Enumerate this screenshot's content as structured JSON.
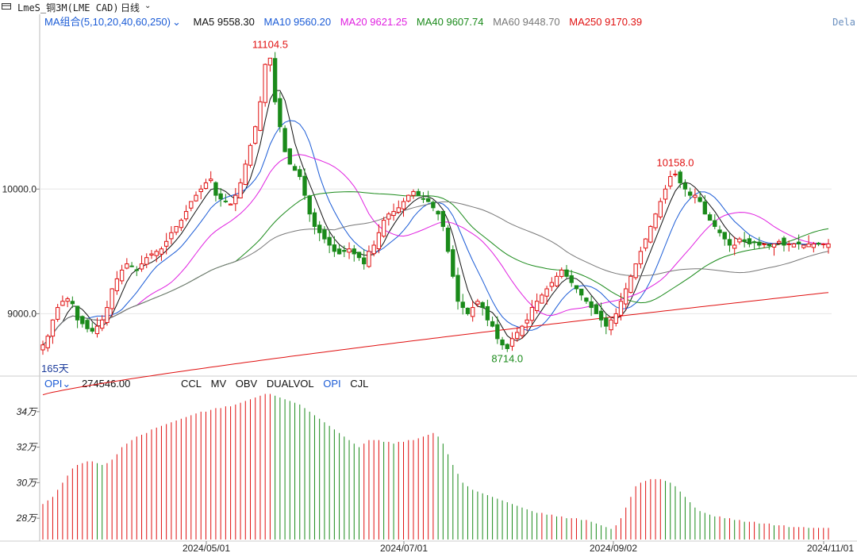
{
  "window": {
    "title": "LmeS_铜3M(LME CAD)",
    "period_label": "日线",
    "delay_label": "Dela"
  },
  "legend": {
    "selector_label": "MA组合(5,10,20,40,60,250)",
    "items": [
      {
        "label": "MA5 9558.30",
        "color": "#111111"
      },
      {
        "label": "MA10 9560.20",
        "color": "#1a5bd6"
      },
      {
        "label": "MA20 9621.25",
        "color": "#e020e0"
      },
      {
        "label": "MA40 9607.74",
        "color": "#1a8a1a"
      },
      {
        "label": "MA60 9448.70",
        "color": "#777777"
      },
      {
        "label": "MA250 9170.39",
        "color": "#e01010"
      }
    ]
  },
  "price_axis": {
    "ticks": [
      "10000.0",
      "9000.0"
    ]
  },
  "annotations": {
    "high1": "11104.5",
    "low1": "8714.0",
    "high2": "10158.0",
    "days": "165天"
  },
  "sub_panel": {
    "selector_label": "OPI",
    "value": "274546.00",
    "tabs": [
      {
        "label": "CCL",
        "active": false
      },
      {
        "label": "MV",
        "active": false
      },
      {
        "label": "OBV",
        "active": false
      },
      {
        "label": "DUALVOL",
        "active": false
      },
      {
        "label": "OPI",
        "active": true
      },
      {
        "label": "CJL",
        "active": false
      }
    ],
    "y_ticks": [
      "34万",
      "32万",
      "30万",
      "28万"
    ]
  },
  "x_axis": {
    "ticks": [
      "2024/05/01",
      "2024/07/01",
      "2024/09/02",
      "2024/11/01"
    ]
  },
  "colors": {
    "up": "#e01010",
    "down": "#1a8a1a",
    "grid": "#e6e6e6"
  },
  "chart_data": [
    {
      "type": "candlestick",
      "title": "LmeS_铜3M(LME CAD)",
      "period": "日线",
      "ylim": [
        8500,
        11300
      ],
      "series": [
        {
          "name": "MA5",
          "last": 9558.3
        },
        {
          "name": "MA10",
          "last": 9560.2
        },
        {
          "name": "MA20",
          "last": 9621.25
        },
        {
          "name": "MA40",
          "last": 9607.74
        },
        {
          "name": "MA60",
          "last": 9448.7
        },
        {
          "name": "MA250",
          "last": 9170.39
        }
      ],
      "closes": [
        8750,
        8820,
        8950,
        9050,
        9100,
        9120,
        9080,
        8950,
        8920,
        8880,
        8860,
        8900,
        8950,
        9050,
        9200,
        9280,
        9350,
        9400,
        9380,
        9350,
        9400,
        9450,
        9480,
        9500,
        9520,
        9580,
        9650,
        9700,
        9750,
        9820,
        9900,
        9950,
        10000,
        10050,
        10080,
        9950,
        9920,
        9900,
        9880,
        9950,
        10050,
        10200,
        10350,
        10500,
        10700,
        11000,
        11050,
        10700,
        10500,
        10300,
        10200,
        10150,
        10100,
        9950,
        9800,
        9700,
        9650,
        9600,
        9550,
        9500,
        9480,
        9500,
        9520,
        9480,
        9450,
        9400,
        9500,
        9550,
        9650,
        9750,
        9800,
        9820,
        9850,
        9900,
        9950,
        9980,
        9950,
        9920,
        9900,
        9850,
        9800,
        9700,
        9500,
        9300,
        9100,
        9050,
        9000,
        9050,
        9100,
        9050,
        8950,
        8900,
        8800,
        8750,
        8720,
        8800,
        8850,
        8900,
        8950,
        9050,
        9100,
        9150,
        9200,
        9250,
        9300,
        9350,
        9300,
        9250,
        9200,
        9150,
        9100,
        9050,
        9000,
        8950,
        8900,
        8950,
        9000,
        9100,
        9200,
        9300,
        9400,
        9500,
        9600,
        9700,
        9800,
        9900,
        10000,
        10100,
        10120,
        10050,
        10000,
        9950,
        9950,
        9900,
        9800,
        9750,
        9700,
        9650,
        9600,
        9550,
        9550,
        9600,
        9580,
        9560,
        9570,
        9550,
        9560,
        9550,
        9560,
        9580,
        9550,
        9560,
        9560,
        9560,
        9550,
        9560,
        9560,
        9560,
        9560,
        9560
      ],
      "ma250_range": [
        8350,
        9170.39
      ],
      "annotations": {
        "high": 11104.5,
        "low": 8714.0,
        "second_high": 10158.0,
        "span": "165天"
      }
    },
    {
      "type": "bar",
      "title": "OPI",
      "last_value": 274546.0,
      "ylim": [
        268000,
        352000
      ],
      "y_ticks": [
        340000,
        320000,
        300000,
        280000
      ],
      "x_ticks": [
        "2024/05/01",
        "2024/07/01",
        "2024/09/02",
        "2024/11/01"
      ],
      "values": [
        288000,
        290000,
        292000,
        296000,
        300000,
        304000,
        308000,
        310000,
        311000,
        312000,
        312000,
        311000,
        310000,
        311000,
        313000,
        316000,
        320000,
        322000,
        324000,
        326000,
        327000,
        328000,
        330000,
        331000,
        332000,
        333000,
        334000,
        335000,
        336000,
        337000,
        338000,
        339000,
        340000,
        340000,
        341000,
        342000,
        342000,
        343000,
        343000,
        344000,
        345000,
        346000,
        347000,
        348000,
        349000,
        350000,
        350000,
        349000,
        348000,
        347000,
        346000,
        345000,
        344000,
        342000,
        340000,
        338000,
        336000,
        334000,
        332000,
        330000,
        328000,
        326000,
        324000,
        322000,
        320000,
        322000,
        324000,
        324000,
        324000,
        323000,
        323000,
        322000,
        323000,
        323000,
        324000,
        324000,
        325000,
        326000,
        327000,
        328000,
        326000,
        322000,
        316000,
        310000,
        305000,
        300000,
        298000,
        296000,
        295000,
        294000,
        293000,
        292000,
        291000,
        290000,
        289000,
        288000,
        287000,
        286000,
        285000,
        284000,
        283000,
        283000,
        282000,
        282000,
        281000,
        281000,
        280000,
        280000,
        280000,
        279000,
        279000,
        278000,
        277000,
        276000,
        275000,
        274000,
        276000,
        280000,
        286000,
        292000,
        298000,
        300000,
        301000,
        302000,
        302000,
        302000,
        301000,
        300000,
        298000,
        295000,
        292000,
        289000,
        286000,
        284000,
        283000,
        282000,
        281000,
        281000,
        280000,
        280000,
        279000,
        279000,
        278000,
        278000,
        278000,
        277000,
        277000,
        277000,
        276000,
        276000,
        276000,
        275000,
        275000,
        275000,
        275000,
        274546,
        274546,
        274546,
        274546,
        274546
      ]
    }
  ]
}
